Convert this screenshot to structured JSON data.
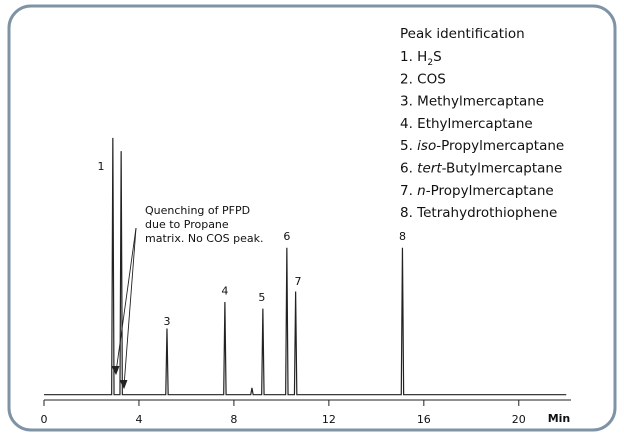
{
  "chart_data": {
    "type": "line",
    "x": [
      0,
      2.85,
      2.9,
      2.95,
      3.2,
      3.25,
      3.3,
      5.13,
      5.18,
      5.23,
      7.57,
      7.62,
      7.67,
      8.71,
      8.76,
      8.81,
      9.17,
      9.22,
      9.27,
      10.18,
      10.23,
      10.28,
      10.55,
      10.6,
      10.65,
      15.05,
      15.1,
      15.15,
      22
    ],
    "values": [
      0,
      0,
      97,
      0,
      0,
      92,
      0,
      0,
      25,
      0,
      0,
      35,
      0,
      0,
      2.6,
      0,
      0,
      32.5,
      0,
      0,
      55.5,
      0,
      0,
      39,
      0,
      0,
      55.5,
      0,
      0
    ],
    "color": "#222222",
    "xlim": [
      0,
      22.2
    ],
    "ylim": [
      -2,
      100
    ],
    "xticks": [
      0,
      4,
      8,
      12,
      16,
      20
    ],
    "xlabel": "Min",
    "peak_labels": [
      {
        "text": "1",
        "x": 2.4,
        "y": 86
      },
      {
        "text": "3",
        "x": 5.18,
        "y": 27.5
      },
      {
        "text": "4",
        "x": 7.62,
        "y": 38.9
      },
      {
        "text": "5",
        "x": 9.18,
        "y": 36.6
      },
      {
        "text": "6",
        "x": 10.23,
        "y": 59.6
      },
      {
        "text": "7",
        "x": 10.7,
        "y": 42.6
      },
      {
        "text": "8",
        "x": 15.1,
        "y": 59.6
      }
    ],
    "note": [
      "Quenching of PFPD",
      "due to Propane",
      "matrix. No COS peak."
    ],
    "legend_title": "Peak identification",
    "legend_items": [
      [
        {
          "text": "1. H"
        },
        {
          "text": "2",
          "style": "sub"
        },
        {
          "text": "S"
        }
      ],
      [
        {
          "text": "2. COS"
        }
      ],
      [
        {
          "text": "3. Methylmercaptane"
        }
      ],
      [
        {
          "text": "4. Ethylmercaptane"
        }
      ],
      [
        {
          "text": "5. "
        },
        {
          "text": "iso",
          "style": "italic"
        },
        {
          "text": "-Propylmercaptane"
        }
      ],
      [
        {
          "text": "6. "
        },
        {
          "text": "tert",
          "style": "italic"
        },
        {
          "text": "-Butylmercaptane"
        }
      ],
      [
        {
          "text": "7. "
        },
        {
          "text": "n",
          "style": "italic"
        },
        {
          "text": "-Propylmercaptane"
        }
      ],
      [
        {
          "text": "8. Tetrahydrothiophene"
        }
      ]
    ]
  }
}
